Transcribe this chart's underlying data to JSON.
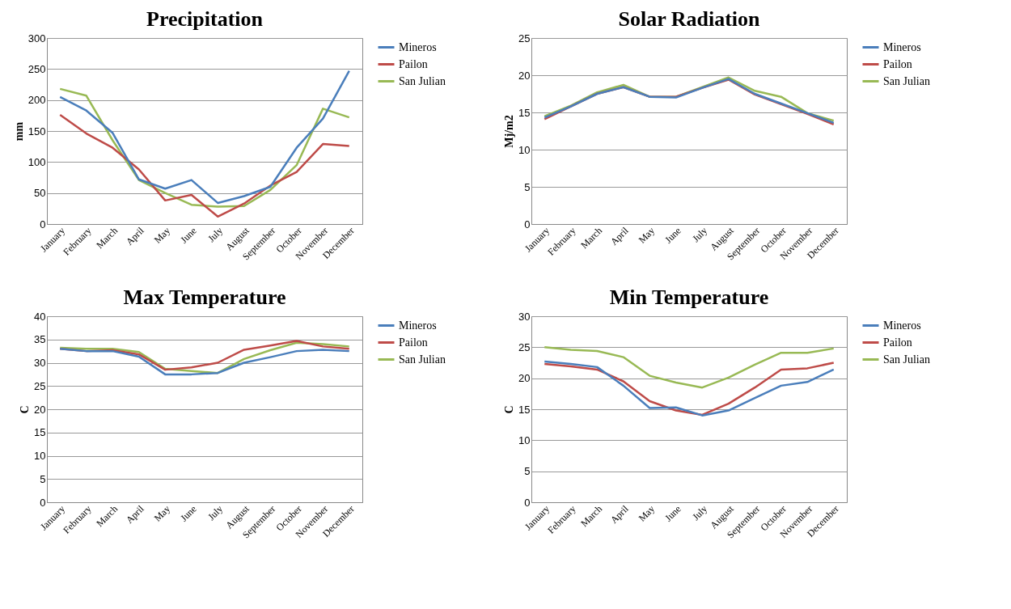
{
  "chart_data": [
    {
      "type": "line",
      "title": "Precipitation",
      "ylabel": "mm",
      "categories": [
        "January",
        "February",
        "March",
        "April",
        "May",
        "June",
        "July",
        "August",
        "September",
        "October",
        "November",
        "December"
      ],
      "ylim": [
        0,
        300
      ],
      "yticks": [
        0,
        50,
        100,
        150,
        200,
        250,
        300
      ],
      "grid": "y",
      "legend": "right",
      "series": [
        {
          "name": "Mineros",
          "color": "#4a7ebb",
          "values": [
            205,
            183,
            147,
            72,
            57,
            71,
            34,
            45,
            60,
            123,
            170,
            247
          ]
        },
        {
          "name": "Pailon",
          "color": "#be4b48",
          "values": [
            176,
            146,
            123,
            88,
            38,
            47,
            12,
            33,
            62,
            84,
            129,
            126
          ]
        },
        {
          "name": "San Julian",
          "color": "#98b954",
          "values": [
            218,
            207,
            135,
            71,
            50,
            31,
            28,
            29,
            55,
            95,
            186,
            172
          ]
        }
      ]
    },
    {
      "type": "line",
      "title": "Solar Radiation",
      "ylabel": "Mj/m2",
      "categories": [
        "January",
        "February",
        "March",
        "April",
        "May",
        "June",
        "July",
        "August",
        "September",
        "October",
        "November",
        "December"
      ],
      "ylim": [
        0,
        25
      ],
      "yticks": [
        0,
        5,
        10,
        15,
        20,
        25
      ],
      "grid": "y",
      "legend": "right",
      "series": [
        {
          "name": "Mineros",
          "color": "#4a7ebb",
          "values": [
            14.3,
            15.8,
            17.5,
            18.4,
            17.1,
            17.0,
            18.3,
            19.5,
            17.5,
            16.2,
            14.9,
            13.6
          ]
        },
        {
          "name": "Pailon",
          "color": "#be4b48",
          "values": [
            14.1,
            15.8,
            17.5,
            18.4,
            17.1,
            17.1,
            18.3,
            19.4,
            17.4,
            16.1,
            14.8,
            13.4
          ]
        },
        {
          "name": "San Julian",
          "color": "#98b954",
          "values": [
            14.5,
            15.9,
            17.7,
            18.7,
            17.1,
            17.1,
            18.4,
            19.7,
            17.9,
            17.1,
            14.9,
            13.9
          ]
        }
      ]
    },
    {
      "type": "line",
      "title": "Max Temperature",
      "ylabel": "C",
      "categories": [
        "January",
        "February",
        "March",
        "April",
        "May",
        "June",
        "July",
        "August",
        "September",
        "October",
        "November",
        "December"
      ],
      "ylim": [
        0,
        40
      ],
      "yticks": [
        0,
        5,
        10,
        15,
        20,
        25,
        30,
        35,
        40
      ],
      "grid": "y",
      "legend": "right",
      "series": [
        {
          "name": "Mineros",
          "color": "#4a7ebb",
          "values": [
            33,
            32.5,
            32.5,
            31.3,
            27.5,
            27.5,
            27.8,
            30,
            31.2,
            32.5,
            32.8,
            32.5
          ]
        },
        {
          "name": "Pailon",
          "color": "#be4b48",
          "values": [
            33,
            32.5,
            32.7,
            31.8,
            28.5,
            29,
            30,
            32.8,
            33.7,
            34.7,
            33.5,
            33
          ]
        },
        {
          "name": "San Julian",
          "color": "#98b954",
          "values": [
            33.2,
            33,
            33,
            32.3,
            28.7,
            28.2,
            27.8,
            30.8,
            32.7,
            34.3,
            34,
            33.5
          ]
        }
      ]
    },
    {
      "type": "line",
      "title": "Min Temperature",
      "ylabel": "C",
      "categories": [
        "January",
        "February",
        "March",
        "April",
        "May",
        "June",
        "July",
        "August",
        "September",
        "October",
        "November",
        "December"
      ],
      "ylim": [
        0,
        30
      ],
      "yticks": [
        0,
        5,
        10,
        15,
        20,
        25,
        30
      ],
      "grid": "y",
      "legend": "right",
      "series": [
        {
          "name": "Mineros",
          "color": "#4a7ebb",
          "values": [
            22.7,
            22.3,
            21.8,
            18.8,
            15.2,
            15.3,
            14,
            14.8,
            16.8,
            18.8,
            19.4,
            21.4
          ]
        },
        {
          "name": "Pailon",
          "color": "#be4b48",
          "values": [
            22.3,
            21.9,
            21.4,
            19.5,
            16.3,
            14.8,
            14.1,
            15.9,
            18.5,
            21.4,
            21.6,
            22.5
          ]
        },
        {
          "name": "San Julian",
          "color": "#98b954",
          "values": [
            25,
            24.6,
            24.4,
            23.4,
            20.4,
            19.3,
            18.5,
            20.1,
            22.2,
            24.1,
            24.1,
            24.8
          ]
        }
      ]
    }
  ]
}
